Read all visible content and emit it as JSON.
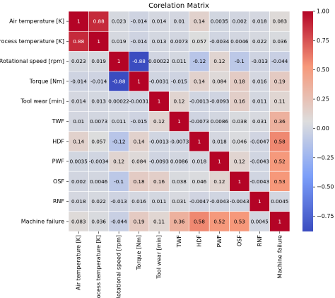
{
  "chart_data": {
    "type": "heatmap",
    "title": "Corelation Matrix",
    "categories": [
      "Air temperature [K]",
      "Process temperature [K]",
      "Rotational speed [rpm]",
      "Torque [Nm]",
      "Tool wear [min]",
      "TWF",
      "HDF",
      "PWF",
      "OSF",
      "RNF",
      "Machine failure"
    ],
    "values": [
      [
        1,
        0.88,
        0.023,
        -0.014,
        0.014,
        0.01,
        0.14,
        0.0035,
        0.002,
        0.018,
        0.083
      ],
      [
        0.88,
        1,
        0.019,
        -0.014,
        0.013,
        0.0073,
        0.057,
        -0.0034,
        0.0046,
        0.022,
        0.036
      ],
      [
        0.023,
        0.019,
        1,
        -0.88,
        0.00022,
        0.011,
        -0.12,
        0.12,
        -0.1,
        -0.013,
        -0.044
      ],
      [
        -0.014,
        -0.014,
        -0.88,
        1,
        -0.0031,
        -0.015,
        0.14,
        0.084,
        0.18,
        0.016,
        0.19
      ],
      [
        0.014,
        0.013,
        0.00022,
        -0.0031,
        1,
        0.12,
        -0.0013,
        -0.0093,
        0.16,
        0.011,
        0.11
      ],
      [
        0.01,
        0.0073,
        0.011,
        -0.015,
        0.12,
        1,
        -0.0073,
        0.0086,
        0.038,
        0.031,
        0.36
      ],
      [
        0.14,
        0.057,
        -0.12,
        0.14,
        -0.0013,
        -0.0073,
        1,
        0.018,
        0.046,
        -0.0047,
        0.58
      ],
      [
        0.0035,
        -0.0034,
        0.12,
        0.084,
        -0.0093,
        0.0086,
        0.018,
        1,
        0.12,
        -0.0043,
        0.52
      ],
      [
        0.002,
        0.0046,
        -0.1,
        0.18,
        0.16,
        0.038,
        0.046,
        0.12,
        1,
        -0.0043,
        0.53
      ],
      [
        0.018,
        0.022,
        -0.013,
        0.016,
        0.011,
        0.031,
        -0.0047,
        -0.0043,
        -0.0043,
        1,
        0.0045
      ],
      [
        0.083,
        0.036,
        -0.044,
        0.19,
        0.11,
        0.36,
        0.58,
        0.52,
        0.53,
        0.0045,
        1
      ]
    ],
    "colormap": "coolwarm",
    "zlim": [
      -0.88,
      1
    ],
    "zticks": [
      {
        "value": -0.75,
        "label": "−0.75"
      },
      {
        "value": -0.5,
        "label": "−0.50"
      },
      {
        "value": -0.25,
        "label": "−0.25"
      },
      {
        "value": 0,
        "label": "0.00"
      },
      {
        "value": 0.25,
        "label": "0.25"
      },
      {
        "value": 0.5,
        "label": "0.50"
      },
      {
        "value": 0.75,
        "label": "0.75"
      },
      {
        "value": 1,
        "label": "1.00"
      }
    ]
  }
}
